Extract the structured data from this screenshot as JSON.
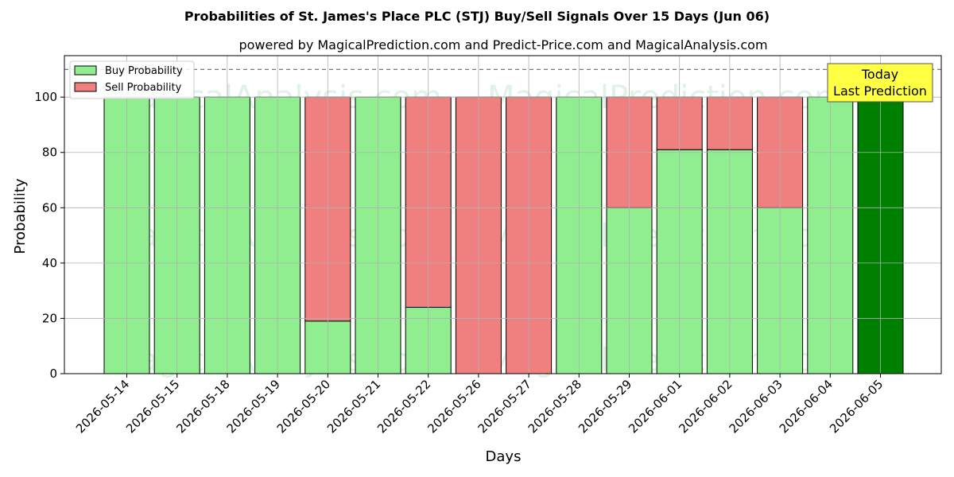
{
  "chart_data": {
    "type": "bar",
    "title": "Probabilities of St. James's Place PLC (STJ) Buy/Sell Signals Over 15 Days (Jun 06)",
    "subtitle": "powered by MagicalPrediction.com and Predict-Price.com and MagicalAnalysis.com",
    "xlabel": "Days",
    "ylabel": "Probability",
    "ylim": [
      0,
      115
    ],
    "yticks": [
      0,
      20,
      40,
      60,
      80,
      100
    ],
    "reference_line": 110,
    "grid": true,
    "stacked": true,
    "legend_position": "top-left",
    "categories": [
      "2026-05-14",
      "2026-05-15",
      "2026-05-18",
      "2026-05-19",
      "2026-05-20",
      "2026-05-21",
      "2026-05-22",
      "2026-05-26",
      "2026-05-27",
      "2026-05-28",
      "2026-05-29",
      "2026-06-01",
      "2026-06-02",
      "2026-06-03",
      "2026-06-04",
      "2026-06-05"
    ],
    "series": [
      {
        "name": "Buy Probability",
        "color": "#90ee90",
        "values": [
          100,
          100,
          100,
          100,
          19,
          100,
          24,
          0,
          0,
          100,
          60,
          81,
          81,
          60,
          100,
          100
        ]
      },
      {
        "name": "Sell Probability",
        "color": "#f08080",
        "values": [
          0,
          0,
          0,
          0,
          81,
          0,
          76,
          100,
          100,
          0,
          40,
          19,
          19,
          40,
          0,
          0
        ]
      }
    ],
    "highlight": {
      "index": 15,
      "color": "#008000",
      "label_lines": [
        "Today",
        "Last Prediction"
      ],
      "box_color": "#ffff44"
    },
    "watermarks": [
      "MagicalAnalysis.com",
      "MagicalPrediction.com"
    ]
  }
}
